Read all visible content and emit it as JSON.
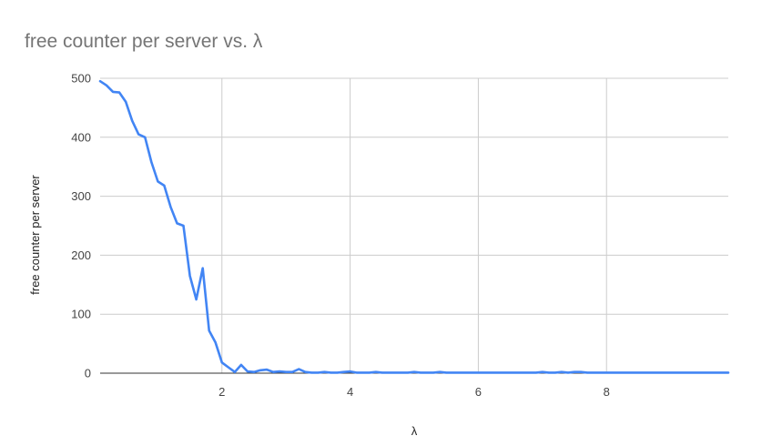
{
  "chart_data": {
    "type": "line",
    "title": "free counter per server vs. λ",
    "xlabel": "λ",
    "ylabel": "free counter per server",
    "xlim": [
      0.1,
      9.9
    ],
    "ylim": [
      0,
      500
    ],
    "xticks": [
      2,
      4,
      6,
      8
    ],
    "yticks": [
      0,
      100,
      200,
      300,
      400,
      500
    ],
    "grid": true,
    "series": [
      {
        "color": "#4285f4",
        "x": [
          0.1,
          0.2,
          0.3,
          0.4,
          0.5,
          0.6,
          0.7,
          0.8,
          0.9,
          1.0,
          1.1,
          1.2,
          1.3,
          1.4,
          1.5,
          1.6,
          1.7,
          1.8,
          1.9,
          2.0,
          2.1,
          2.2,
          2.3,
          2.4,
          2.5,
          2.6,
          2.7,
          2.8,
          2.9,
          3.0,
          3.1,
          3.2,
          3.3,
          3.4,
          3.5,
          3.6,
          3.7,
          3.8,
          3.9,
          4.0,
          4.1,
          4.2,
          4.3,
          4.4,
          4.5,
          4.6,
          4.7,
          4.8,
          4.9,
          5.0,
          5.1,
          5.2,
          5.3,
          5.4,
          5.5,
          5.6,
          5.7,
          5.8,
          5.9,
          6.0,
          6.1,
          6.2,
          6.3,
          6.4,
          6.5,
          6.6,
          6.7,
          6.8,
          6.9,
          7.0,
          7.1,
          7.2,
          7.3,
          7.4,
          7.5,
          7.6,
          7.7,
          7.8,
          7.9,
          8.0,
          8.1,
          8.2,
          8.3,
          8.4,
          8.5,
          8.6,
          8.7,
          8.8,
          8.9,
          9.0,
          9.1,
          9.2,
          9.3,
          9.4,
          9.5,
          9.6,
          9.7,
          9.8,
          9.9
        ],
        "values": [
          495,
          488,
          477,
          476,
          460,
          428,
          405,
          400,
          358,
          325,
          318,
          282,
          254,
          250,
          165,
          125,
          178,
          72,
          52,
          18,
          10,
          2,
          14,
          3,
          2,
          5,
          6,
          2,
          3,
          2,
          2,
          7,
          2,
          1,
          1,
          2,
          1,
          1,
          2,
          3,
          1,
          1,
          1,
          2,
          1,
          1,
          1,
          1,
          1,
          2,
          1,
          1,
          1,
          2,
          1,
          1,
          1,
          1,
          1,
          1,
          1,
          1,
          1,
          1,
          1,
          1,
          1,
          1,
          1,
          2,
          1,
          1,
          2,
          1,
          2,
          2,
          1,
          1,
          1,
          1,
          1,
          1,
          1,
          1,
          1,
          1,
          1,
          1,
          1,
          1,
          1,
          1,
          1,
          1,
          1,
          1,
          1,
          1,
          1
        ]
      }
    ]
  }
}
